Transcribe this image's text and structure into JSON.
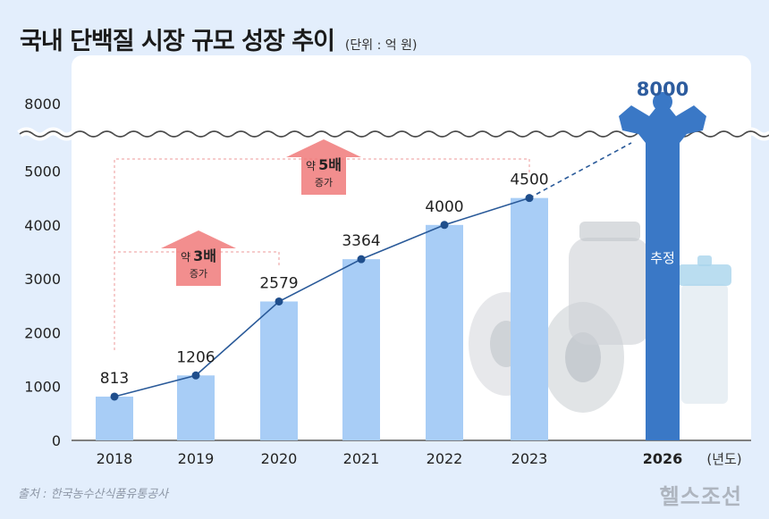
{
  "header": {
    "title": "국내 단백질 시장 규모 성장 추이",
    "unit": "(단위 : 억 원)"
  },
  "footer": {
    "source": "출처 : 한국농수산식품유통공사",
    "brand": "헬스조선"
  },
  "colors": {
    "bar": "#a8cdf6",
    "bar_projected": "#3a78c6",
    "line": "#2a5a99",
    "point": "#1f4e8c",
    "arrow": "#f07a7a",
    "bracket": "#ee9a9a",
    "projected_label": "#2d5c9e"
  },
  "chart_data": {
    "type": "bar",
    "categories": [
      "2018",
      "2019",
      "2020",
      "2021",
      "2022",
      "2023",
      "2026"
    ],
    "values": [
      813,
      1206,
      2579,
      3364,
      4000,
      4500,
      8000
    ],
    "value_labels": [
      "813",
      "1206",
      "2579",
      "3364",
      "4000",
      "4500",
      "8000"
    ],
    "projected_index": 6,
    "projected_label": "추정",
    "xlabel": "(년도)",
    "ylabel": "",
    "y_ticks": [
      "0",
      "1000",
      "2000",
      "3000",
      "4000",
      "5000",
      "8000"
    ],
    "y_tick_values": [
      0,
      1000,
      2000,
      3000,
      4000,
      5000,
      8000
    ],
    "ylim": [
      0,
      5000
    ],
    "axis_break": true,
    "line_overlay": true,
    "annotations": [
      {
        "from": "2018",
        "to": "2020",
        "prefix": "약",
        "main": "3배",
        "suffix": "증가"
      },
      {
        "from": "2018",
        "to": "2023",
        "prefix": "약",
        "main": "5배",
        "suffix": "증가"
      }
    ]
  }
}
